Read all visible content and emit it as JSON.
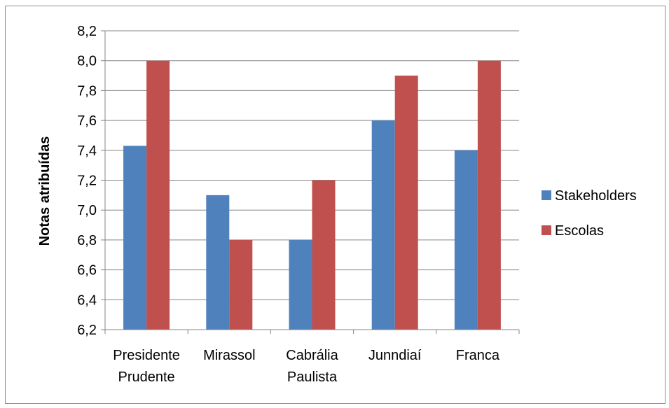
{
  "chart_data": {
    "type": "bar",
    "title": "",
    "xlabel": "",
    "ylabel": "Notas atribuídas",
    "ylim": [
      6.2,
      8.2
    ],
    "y_ticks": [
      "6,2",
      "6,4",
      "6,6",
      "6,8",
      "7,0",
      "7,2",
      "7,4",
      "7,6",
      "7,8",
      "8,0",
      "8,2"
    ],
    "categories": [
      [
        "Presidente",
        "Prudente"
      ],
      [
        "Mirassol"
      ],
      [
        "Cabrália",
        "Paulista"
      ],
      [
        "Junndiaí"
      ],
      [
        "Franca"
      ]
    ],
    "series": [
      {
        "name": "Stakeholders",
        "color": "#4f81bd",
        "values": [
          7.43,
          7.1,
          6.8,
          7.6,
          7.4
        ]
      },
      {
        "name": "Escolas",
        "color": "#c0504d",
        "values": [
          8.0,
          6.8,
          7.2,
          7.9,
          8.0
        ]
      }
    ],
    "grid": true,
    "legend_position": "right"
  }
}
